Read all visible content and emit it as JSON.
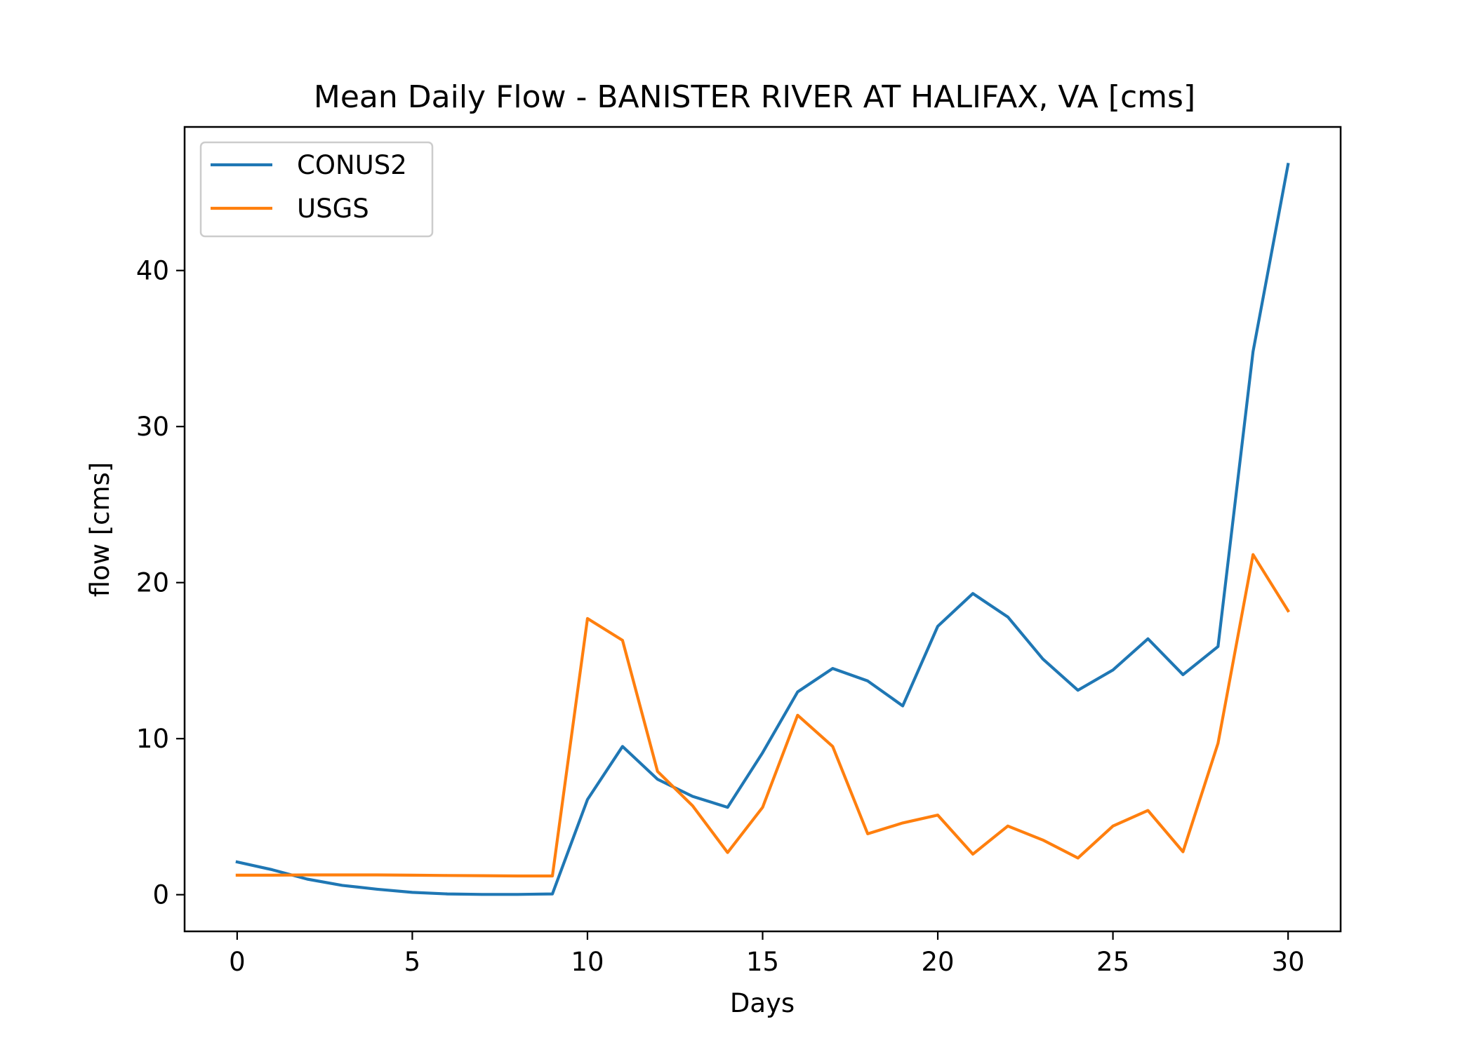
{
  "chart_data": {
    "type": "line",
    "title": "Mean Daily Flow - BANISTER RIVER AT HALIFAX, VA [cms]",
    "xlabel": "Days",
    "ylabel": "flow [cms]",
    "xlim": [
      -1.5,
      31.5
    ],
    "ylim": [
      -2.35,
      49.2
    ],
    "xticks": [
      0,
      5,
      10,
      15,
      20,
      25,
      30
    ],
    "yticks": [
      0,
      10,
      20,
      30,
      40
    ],
    "grid": false,
    "legend_position": "upper-left",
    "x": [
      0,
      1,
      2,
      3,
      4,
      5,
      6,
      7,
      8,
      9,
      10,
      11,
      12,
      13,
      14,
      15,
      16,
      17,
      18,
      19,
      20,
      21,
      22,
      23,
      24,
      25,
      26,
      27,
      28,
      29,
      30
    ],
    "series": [
      {
        "name": "CONUS2",
        "color": "#1f77b4",
        "values": [
          2.1,
          1.6,
          1.0,
          0.6,
          0.35,
          0.15,
          0.05,
          0.02,
          0.02,
          0.05,
          6.1,
          9.5,
          7.4,
          6.3,
          5.6,
          9.1,
          13.0,
          14.5,
          13.7,
          12.1,
          17.2,
          19.3,
          17.8,
          15.1,
          13.1,
          14.4,
          16.4,
          14.1,
          15.9,
          34.8,
          46.8
        ]
      },
      {
        "name": "USGS",
        "color": "#ff7f0e",
        "values": [
          1.25,
          1.25,
          1.27,
          1.27,
          1.27,
          1.25,
          1.23,
          1.22,
          1.2,
          1.2,
          17.7,
          16.3,
          7.9,
          5.7,
          2.7,
          5.6,
          11.5,
          9.5,
          3.9,
          4.6,
          5.1,
          2.6,
          4.4,
          3.5,
          2.35,
          4.4,
          5.4,
          2.75,
          9.7,
          21.8,
          18.2
        ]
      }
    ]
  }
}
